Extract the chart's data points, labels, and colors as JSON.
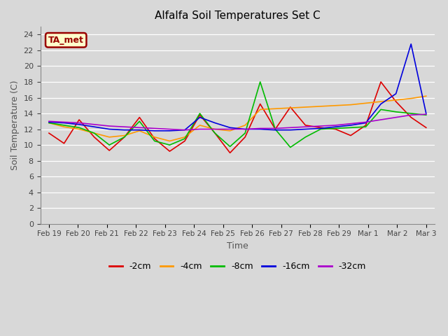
{
  "title": "Alfalfa Soil Temperatures Set C",
  "xlabel": "Time",
  "ylabel": "Soil Temperature (C)",
  "fig_facecolor": "#d8d8d8",
  "ax_facecolor": "#d8d8d8",
  "ylim": [
    0,
    25
  ],
  "yticks": [
    0,
    2,
    4,
    6,
    8,
    10,
    12,
    14,
    16,
    18,
    20,
    22,
    24
  ],
  "annotation_text": "TA_met",
  "annotation_bg": "#ffffcc",
  "annotation_border": "#990000",
  "x_labels": [
    "Feb 19",
    "Feb 20",
    "Feb 21",
    "Feb 22",
    "Feb 23",
    "Feb 24",
    "Feb 25",
    "Feb 26",
    "Feb 27",
    "Feb 28",
    "Feb 29",
    "Mar 1",
    "Mar 2",
    "Mar 3"
  ],
  "series": {
    "-2cm": {
      "color": "#dd0000",
      "data_y": [
        11.5,
        10.2,
        13.2,
        11.0,
        9.3,
        11.0,
        13.5,
        10.8,
        9.2,
        10.5,
        13.8,
        11.5,
        9.0,
        11.0,
        15.2,
        12.0,
        14.8,
        12.5,
        12.2,
        12.0,
        11.2,
        12.5,
        18.0,
        15.5,
        13.5,
        12.2
      ]
    },
    "-4cm": {
      "color": "#ff9900",
      "data_y": [
        12.8,
        12.3,
        12.0,
        11.5,
        11.0,
        11.2,
        11.8,
        11.0,
        10.5,
        11.0,
        12.5,
        12.0,
        11.8,
        12.5,
        14.5,
        14.6,
        14.7,
        14.8,
        14.9,
        15.0,
        15.1,
        15.3,
        15.5,
        15.7,
        15.9,
        16.2
      ]
    },
    "-8cm": {
      "color": "#00bb00",
      "data_y": [
        12.8,
        12.5,
        12.2,
        11.5,
        10.0,
        11.0,
        13.0,
        10.5,
        10.0,
        10.8,
        14.0,
        11.5,
        9.8,
        11.5,
        18.0,
        12.0,
        9.7,
        11.0,
        12.0,
        12.1,
        12.2,
        12.3,
        14.5,
        14.2,
        14.0,
        13.8
      ]
    },
    "-16cm": {
      "color": "#0000dd",
      "data_y": [
        12.9,
        12.8,
        12.6,
        12.3,
        12.0,
        11.9,
        11.9,
        11.8,
        11.8,
        11.9,
        13.5,
        12.8,
        12.2,
        12.0,
        12.0,
        11.9,
        11.9,
        12.0,
        12.1,
        12.3,
        12.5,
        12.8,
        15.2,
        16.5,
        22.8,
        14.0
      ]
    },
    "-32cm": {
      "color": "#aa00cc",
      "data_y": [
        13.0,
        12.9,
        12.8,
        12.6,
        12.4,
        12.3,
        12.2,
        12.1,
        12.0,
        11.9,
        12.0,
        12.0,
        12.0,
        12.0,
        12.1,
        12.1,
        12.2,
        12.3,
        12.4,
        12.5,
        12.7,
        12.9,
        13.2,
        13.5,
        13.8,
        13.9
      ]
    }
  }
}
